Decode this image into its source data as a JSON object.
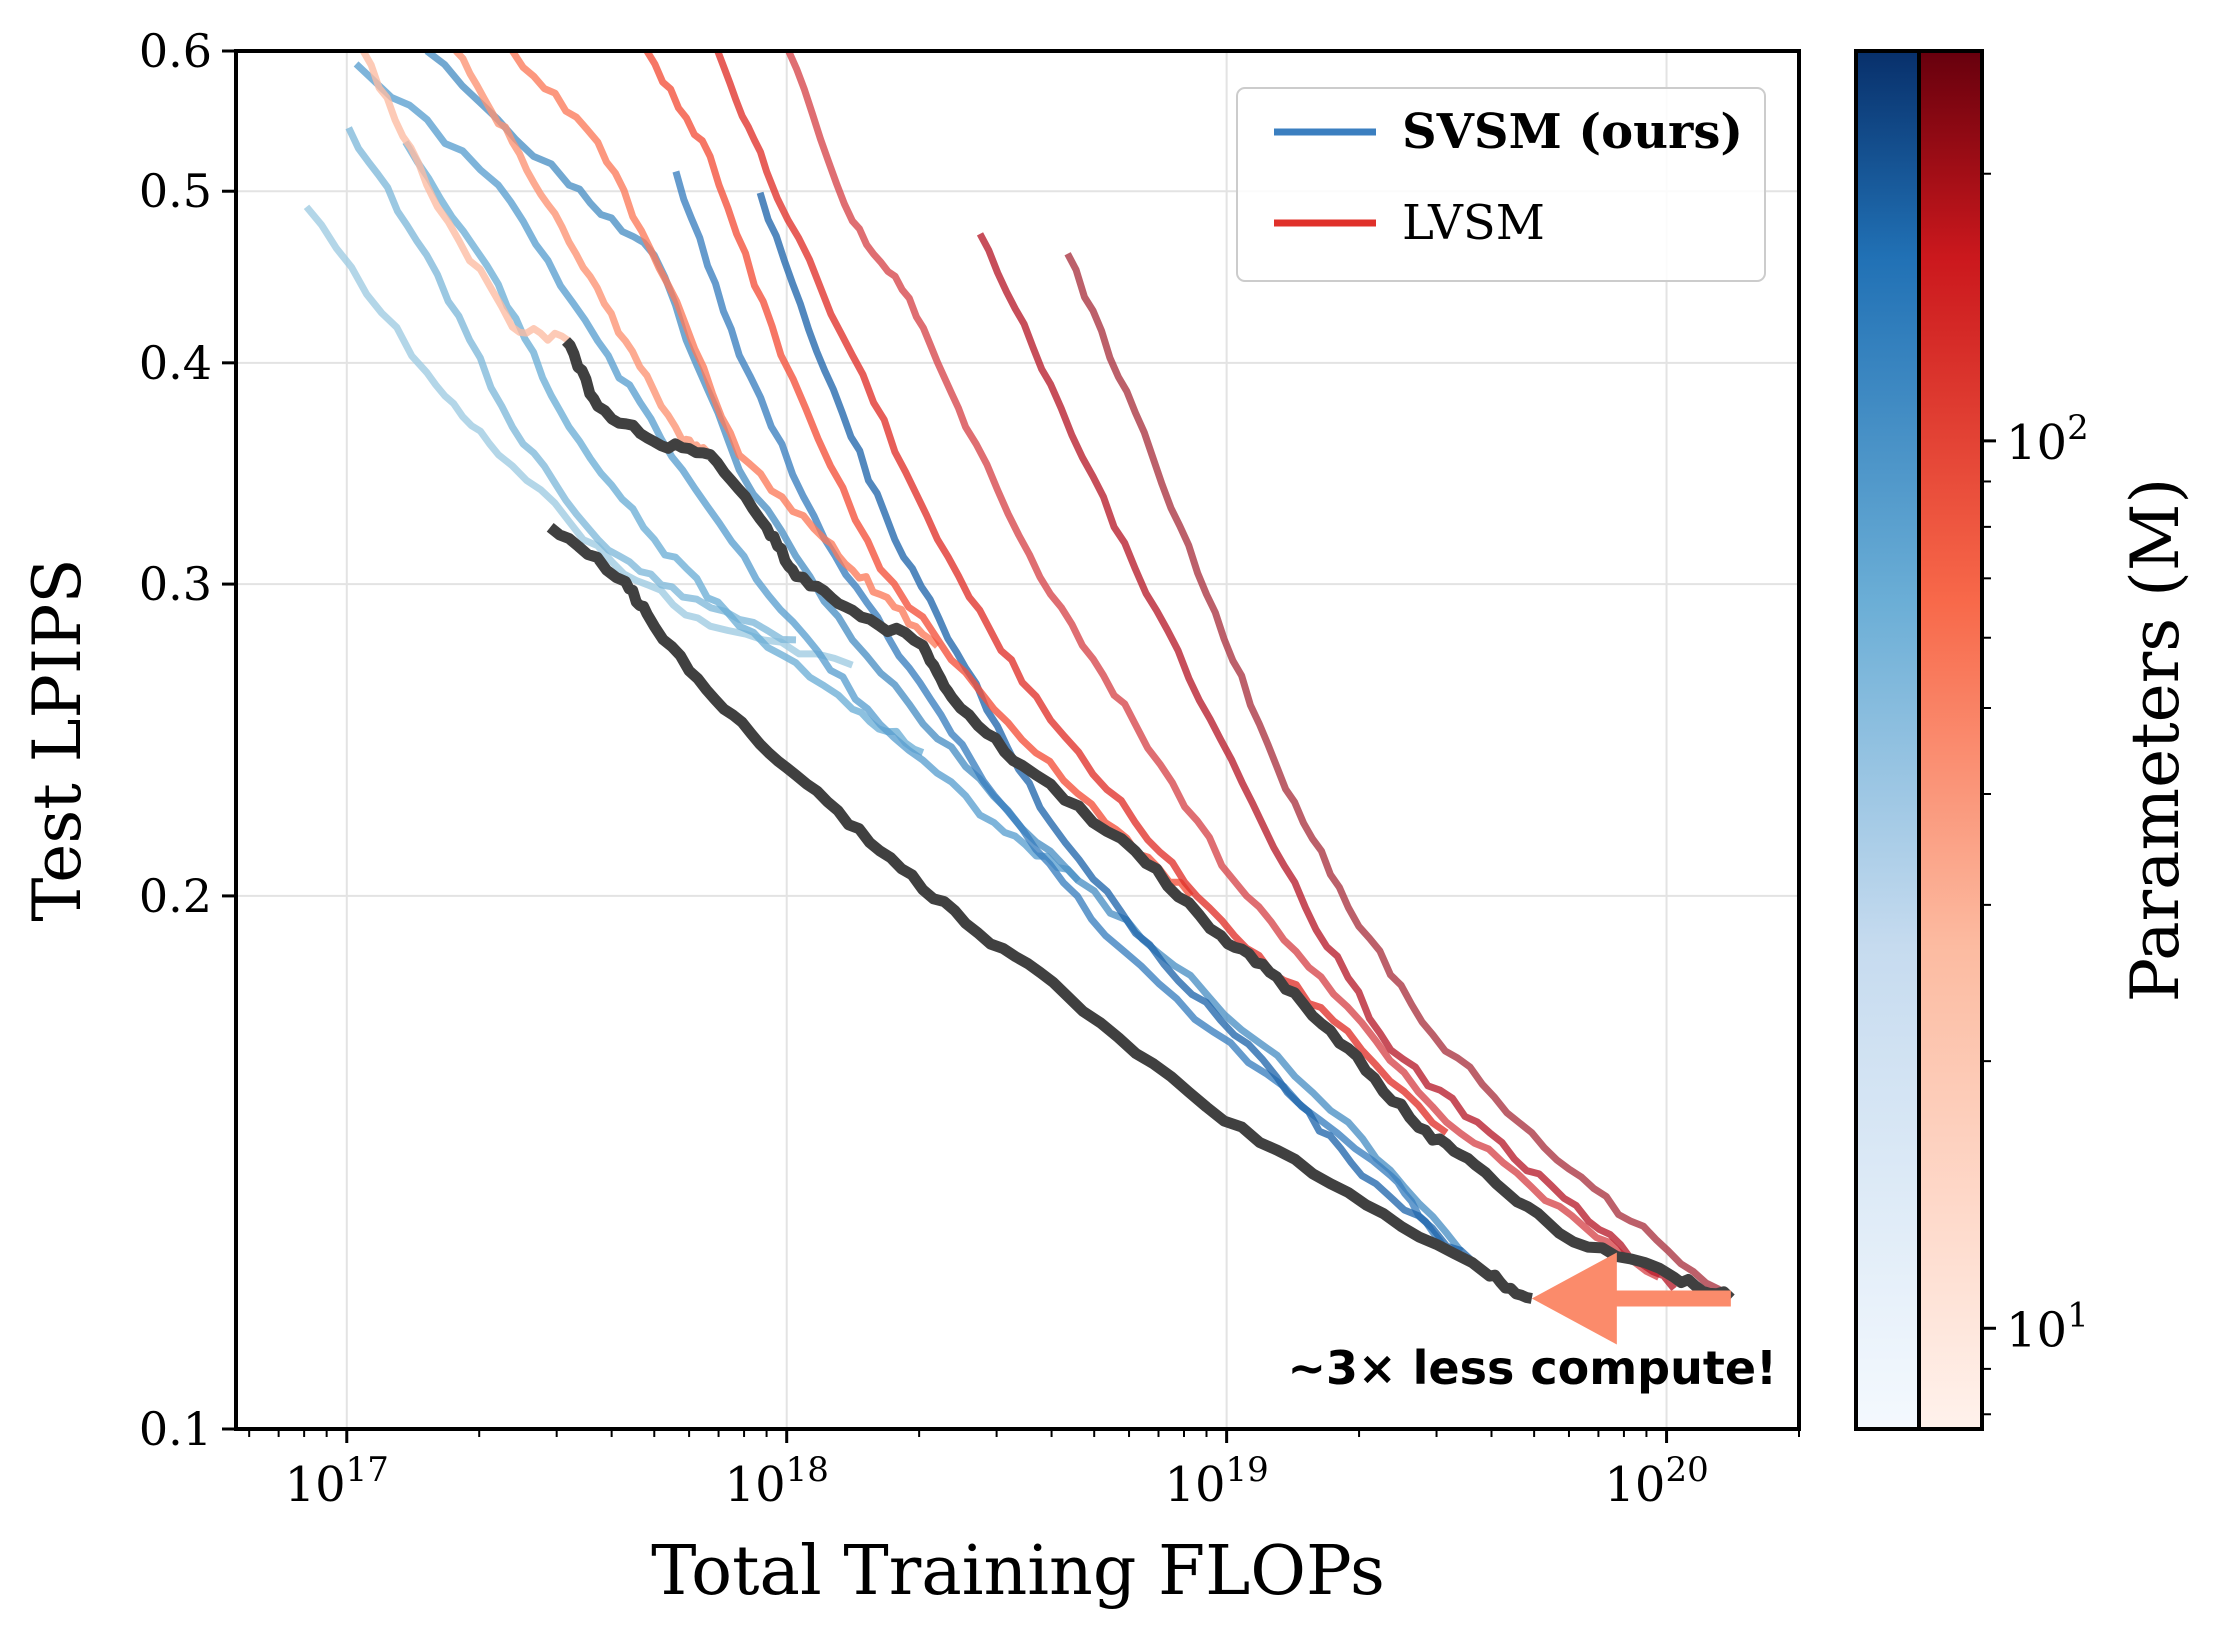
{
  "chart_data": {
    "type": "line",
    "title": "",
    "xlabel": "Total Training FLOPs",
    "ylabel": "Test LPIPS",
    "xscale": "log",
    "yscale": "log",
    "xlim": [
      5.6e+16,
      2e+20
    ],
    "ylim": [
      0.1,
      0.6
    ],
    "grid": true,
    "x_ticks": [
      {
        "value": 1e+17,
        "base": "10",
        "exp": "17"
      },
      {
        "value": 1e+18,
        "base": "10",
        "exp": "18"
      },
      {
        "value": 1e+19,
        "base": "10",
        "exp": "19"
      },
      {
        "value": 1e+20,
        "base": "10",
        "exp": "20"
      }
    ],
    "y_ticks": [
      {
        "value": 0.1,
        "label": "0.1"
      },
      {
        "value": 0.2,
        "label": "0.2"
      },
      {
        "value": 0.3,
        "label": "0.3"
      },
      {
        "value": 0.4,
        "label": "0.4"
      },
      {
        "value": 0.5,
        "label": "0.5"
      },
      {
        "value": 0.6,
        "label": "0.6"
      }
    ],
    "legend": {
      "placement": "top-right",
      "entries": [
        {
          "label": "SVSM (ours)",
          "color": "#3b7fc0",
          "bold": true
        },
        {
          "label": "LVSM",
          "color": "#e0312a",
          "bold": false
        }
      ]
    },
    "colorbar": {
      "label": "Parameters (M)",
      "scale": "log",
      "range": [
        7.7,
        275
      ],
      "ticks": [
        {
          "value": 10,
          "base": "10",
          "exp": "1"
        },
        {
          "value": 100,
          "base": "10",
          "exp": "2"
        }
      ],
      "colormaps": [
        {
          "name": "Blues",
          "low": "#f4f9fe",
          "mid": "#6baed6",
          "high": "#08306b"
        },
        {
          "name": "Reds",
          "low": "#fff2ec",
          "mid": "#f8694a",
          "high": "#67000d"
        }
      ]
    },
    "series": [
      {
        "group": "SVSM",
        "color": "#9ecae1",
        "points": [
          [
            8.1e+16,
            0.49
          ],
          [
            1.52e+17,
            0.395
          ],
          [
            2.21e+17,
            0.355
          ],
          [
            4e+17,
            0.309
          ],
          [
            6.7e+17,
            0.284
          ],
          [
            1.41e+18,
            0.27
          ]
        ]
      },
      {
        "group": "SVSM",
        "color": "#7fb8da",
        "points": [
          [
            1.01e+17,
            0.543
          ],
          [
            1.52e+17,
            0.46
          ],
          [
            2.38e+17,
            0.368
          ],
          [
            3.72e+17,
            0.318
          ],
          [
            5.8e+17,
            0.295
          ],
          [
            1.05e+18,
            0.279
          ]
        ]
      },
      {
        "group": "SVSM",
        "color": "#6baed6",
        "points": [
          [
            1.36e+17,
            0.533
          ],
          [
            2.21e+17,
            0.443
          ],
          [
            3.2e+17,
            0.368
          ],
          [
            5e+17,
            0.318
          ],
          [
            7.8e+17,
            0.284
          ],
          [
            1.41e+18,
            0.255
          ],
          [
            2.04e+18,
            0.241
          ]
        ]
      },
      {
        "group": "SVSM",
        "color": "#5a9fd0",
        "points": [
          [
            1.05e+17,
            0.59
          ],
          [
            2.21e+17,
            0.504
          ],
          [
            3.72e+17,
            0.4115
          ],
          [
            5.8e+17,
            0.348
          ],
          [
            9.7e+17,
            0.29
          ],
          [
            1.63e+18,
            0.25
          ],
          [
            2.96e+18,
            0.22
          ],
          [
            4.6e+18,
            0.204
          ]
        ]
      },
      {
        "group": "SVSM",
        "color": "#4a90c4",
        "points": [
          [
            1.52e+17,
            0.6
          ],
          [
            3.2e+17,
            0.504
          ],
          [
            5e+17,
            0.46
          ],
          [
            7.8e+17,
            0.348
          ],
          [
            1.41e+18,
            0.279
          ],
          [
            2.55e+18,
            0.2366
          ],
          [
            4.6e+18,
            0.204
          ],
          [
            9e+18,
            0.176
          ],
          [
            1.89e+19,
            0.149
          ],
          [
            3.41e+19,
            0.126
          ]
        ]
      },
      {
        "group": "SVSM",
        "color": "#3a7fbf",
        "points": [
          [
            5.6e+17,
            0.513
          ],
          [
            7.8e+17,
            0.404
          ],
          [
            1.22e+18,
            0.318
          ],
          [
            1.9e+18,
            0.269
          ],
          [
            2.96e+18,
            0.228
          ],
          [
            5.3e+18,
            0.19
          ],
          [
            1.12e+19,
            0.161
          ],
          [
            2.36e+19,
            0.139
          ],
          [
            3.16e+19,
            0.126
          ]
        ]
      },
      {
        "group": "SVSM",
        "color": "#2166ac",
        "points": [
          [
            8.7e+17,
            0.499
          ],
          [
            1.22e+18,
            0.396
          ],
          [
            1.76e+18,
            0.318
          ],
          [
            2.55e+18,
            0.269
          ],
          [
            3.98e+18,
            0.22
          ],
          [
            7.2e+18,
            0.183
          ],
          [
            1.3e+19,
            0.158
          ],
          [
            2.03e+19,
            0.139
          ],
          [
            3.67e+19,
            0.124
          ]
        ]
      },
      {
        "group": "LVSM",
        "color": "#fcbba1",
        "points": [
          [
            1.09e+17,
            0.6
          ],
          [
            1.52e+17,
            0.504
          ],
          [
            2.38e+17,
            0.419
          ],
          [
            3.2e+17,
            0.4115
          ]
        ]
      },
      {
        "group": "LVSM",
        "color": "#fc9272",
        "points": [
          [
            1.77e+17,
            0.6
          ],
          [
            2.38e+17,
            0.533
          ],
          [
            3.2e+17,
            0.468
          ],
          [
            4.3e+17,
            0.4115
          ],
          [
            5.8e+17,
            0.3614
          ],
          [
            6.7e+17,
            0.3548
          ]
        ]
      },
      {
        "group": "LVSM",
        "color": "#fb7a5a",
        "points": [
          [
            2.38e+17,
            0.6
          ],
          [
            3.72e+17,
            0.533
          ],
          [
            5.37e+17,
            0.443
          ],
          [
            7.8e+17,
            0.3548
          ],
          [
            1.22e+18,
            0.318
          ],
          [
            1.63e+18,
            0.296
          ],
          [
            2.2e+18,
            0.2767
          ]
        ]
      },
      {
        "group": "LVSM",
        "color": "#f4503a",
        "points": [
          [
            4.81e+17,
            0.6
          ],
          [
            6.7e+17,
            0.523
          ],
          [
            9.7e+17,
            0.404
          ],
          [
            1.63e+18,
            0.306
          ],
          [
            2.96e+18,
            0.255
          ],
          [
            5.3e+18,
            0.22
          ],
          [
            8.3e+18,
            0.2
          ]
        ]
      },
      {
        "group": "LVSM",
        "color": "#e0312a",
        "points": [
          [
            6.97e+17,
            0.6
          ],
          [
            9e+17,
            0.513
          ],
          [
            1.41e+18,
            0.404
          ],
          [
            2.2e+18,
            0.318
          ],
          [
            3.43e+18,
            0.264
          ],
          [
            6.2e+18,
            0.22
          ],
          [
            1.04e+19,
            0.19
          ],
          [
            1.75e+19,
            0.17
          ],
          [
            3.16e+19,
            0.147
          ]
        ]
      },
      {
        "group": "LVSM",
        "color": "#d6454a",
        "points": [
          [
            1.01e+18,
            0.6
          ],
          [
            1.41e+18,
            0.481
          ],
          [
            1.9e+18,
            0.435
          ],
          [
            2.55e+18,
            0.368
          ],
          [
            3.98e+18,
            0.296
          ],
          [
            6.2e+18,
            0.25
          ],
          [
            1.04e+19,
            0.204
          ],
          [
            1.75e+19,
            0.176
          ],
          [
            3.16e+19,
            0.149
          ],
          [
            5.7e+19,
            0.1336
          ],
          [
            9.6e+19,
            0.1218
          ]
        ]
      },
      {
        "group": "LVSM",
        "color": "#b71c2c",
        "points": [
          [
            2.75e+18,
            0.473
          ],
          [
            3.98e+18,
            0.389
          ],
          [
            6.2e+18,
            0.306
          ],
          [
            9.7e+18,
            0.245
          ],
          [
            1.51e+19,
            0.197
          ],
          [
            2.36e+19,
            0.1637
          ],
          [
            3.96e+19,
            0.147
          ],
          [
            6.65e+19,
            0.131
          ],
          [
            1.04e+20,
            0.12
          ]
        ]
      },
      {
        "group": "LVSM",
        "color": "#a93340",
        "points": [
          [
            4.35e+18,
            0.461
          ],
          [
            6.2e+18,
            0.375
          ],
          [
            9e+18,
            0.296
          ],
          [
            1.3e+19,
            0.2366
          ],
          [
            1.89e+19,
            0.197
          ],
          [
            2.94e+19,
            0.167
          ],
          [
            4.94e+19,
            0.147
          ],
          [
            8.3e+19,
            0.131
          ],
          [
            1.4e+20,
            0.1185
          ]
        ]
      },
      {
        "group": "SVSM-frontier",
        "color": "#404040",
        "points": [
          [
            2.9e+17,
            0.323
          ],
          [
            4.3e+17,
            0.301
          ],
          [
            5e+17,
            0.284
          ],
          [
            7.2e+17,
            0.255
          ],
          [
            1.05e+18,
            0.234
          ],
          [
            1.63e+18,
            0.212
          ],
          [
            2.55e+18,
            0.193
          ],
          [
            4.3e+18,
            0.176
          ],
          [
            9e+18,
            0.152
          ],
          [
            1.89e+19,
            0.136
          ],
          [
            3.96e+19,
            0.122
          ],
          [
            4.94e+19,
            0.1185
          ]
        ]
      },
      {
        "group": "LVSM-frontier",
        "color": "#404040",
        "points": [
          [
            3.15e+17,
            0.4115
          ],
          [
            3.72e+17,
            0.378
          ],
          [
            5e+17,
            0.361
          ],
          [
            6.7e+17,
            0.355
          ],
          [
            9e+17,
            0.323
          ],
          [
            1.05e+18,
            0.303
          ],
          [
            1.41e+18,
            0.29
          ],
          [
            2.04e+18,
            0.277
          ],
          [
            2.37e+18,
            0.259
          ],
          [
            3.43e+18,
            0.237
          ],
          [
            6.2e+18,
            0.212
          ],
          [
            9.7e+18,
            0.19
          ],
          [
            1.3e+19,
            0.18
          ],
          [
            1.89e+19,
            0.164
          ],
          [
            2.73e+19,
            0.148
          ],
          [
            3.67e+19,
            0.141
          ],
          [
            5.7e+19,
            0.129
          ],
          [
            1.04e+20,
            0.1218
          ],
          [
            1.4e+20,
            0.1185
          ]
        ]
      }
    ],
    "annotation": {
      "text": "~3× less compute!",
      "arrow_from": [
        1.4e+20,
        0.1185
      ],
      "arrow_to": [
        4.94e+19,
        0.1185
      ],
      "arrow_color": "#fb8b6b"
    }
  }
}
